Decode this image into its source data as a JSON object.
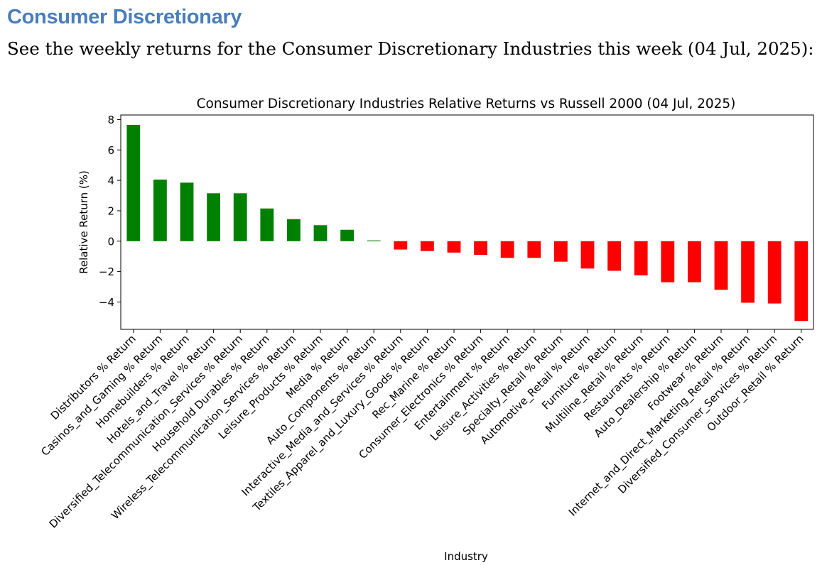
{
  "page": {
    "heading": "Consumer Discretionary",
    "intro": "See the weekly returns for the Consumer Discretionary Industries this week (04 Jul, 2025):"
  },
  "colors": {
    "heading": "#4a7ebb",
    "positive": "#008000",
    "negative": "#ff0000"
  },
  "chart_data": {
    "type": "bar",
    "title": "Consumer Discretionary Industries Relative Returns vs Russell 2000 (04 Jul, 2025)",
    "xlabel": "Industry",
    "ylabel": "Relative Return (%)",
    "ylim": [
      -5.8,
      8.3
    ],
    "yticks": [
      8,
      6,
      4,
      2,
      0,
      -2,
      -4
    ],
    "ytick_labels": [
      "8",
      "6",
      "4",
      "2",
      "0",
      "−2",
      "−4"
    ],
    "categories": [
      "Distributors % Return",
      "Casinos_and_Gaming % Return",
      "Homebuilders % Return",
      "Hotels_and_Travel % Return",
      "Diversified_Telecommunication_Services % Return",
      "Household Durables % Return",
      "Wireless_Telecommunication_Services % Return",
      "Leisure_Products % Return",
      "Media % Return",
      "Auto_Components % Return",
      "Interactive_Media_and_Services % Return",
      "Textiles_Apparel_and_Luxury_Goods % Return",
      "Rec_Marine % Return",
      "Consumer_Electronics % Return",
      "Entertainment % Return",
      "Leisure_Activities % Return",
      "Specialty_Retail % Return",
      "Automotive_Retail % Return",
      "Furniture % Return",
      "Multiline_Retail % Return",
      "Restaurants % Return",
      "Auto_Dealership % Return",
      "Footwear % Return",
      "Internet_and_Direct_Marketing_Retail % Return",
      "Diversified_Consumer_Services % Return",
      "Outdoor_Retail % Return"
    ],
    "values": [
      7.65,
      4.05,
      3.85,
      3.15,
      3.15,
      2.15,
      1.45,
      1.05,
      0.75,
      0.05,
      -0.55,
      -0.65,
      -0.75,
      -0.9,
      -1.1,
      -1.1,
      -1.35,
      -1.8,
      -1.95,
      -2.25,
      -2.7,
      -2.7,
      -3.2,
      -4.05,
      -4.1,
      -5.25
    ]
  }
}
